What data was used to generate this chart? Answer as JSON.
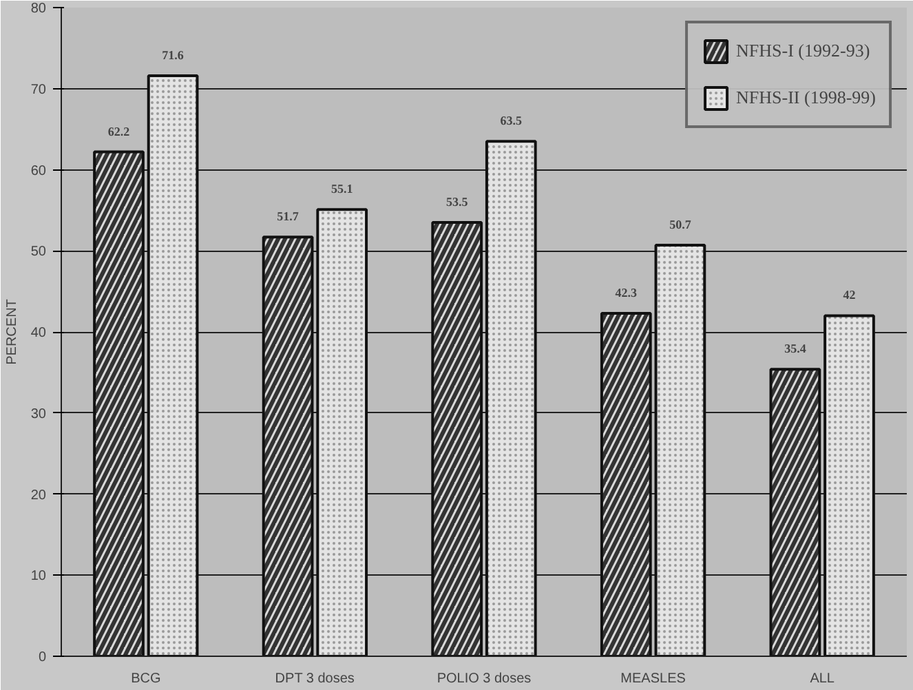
{
  "chart_data": {
    "type": "bar",
    "ylabel": "PERCENT",
    "categories": [
      "BCG",
      "DPT 3 doses",
      "POLIO 3 doses",
      "MEASLES",
      "ALL"
    ],
    "series": [
      {
        "name": "NFHS-I (1992-93)",
        "color": "#d9d9d9",
        "values": [
          62.2,
          51.7,
          53.5,
          42.3,
          35.4
        ]
      },
      {
        "name": "NFHS-II (1998-99)",
        "color": "#e4e4e4",
        "values": [
          71.6,
          55.1,
          63.5,
          50.7,
          42
        ]
      }
    ],
    "ylim": [
      0,
      80
    ],
    "yticks": [
      0,
      10,
      20,
      30,
      40,
      50,
      60,
      70,
      80
    ],
    "grid": "y",
    "legend": "top right",
    "data_labels": true
  }
}
